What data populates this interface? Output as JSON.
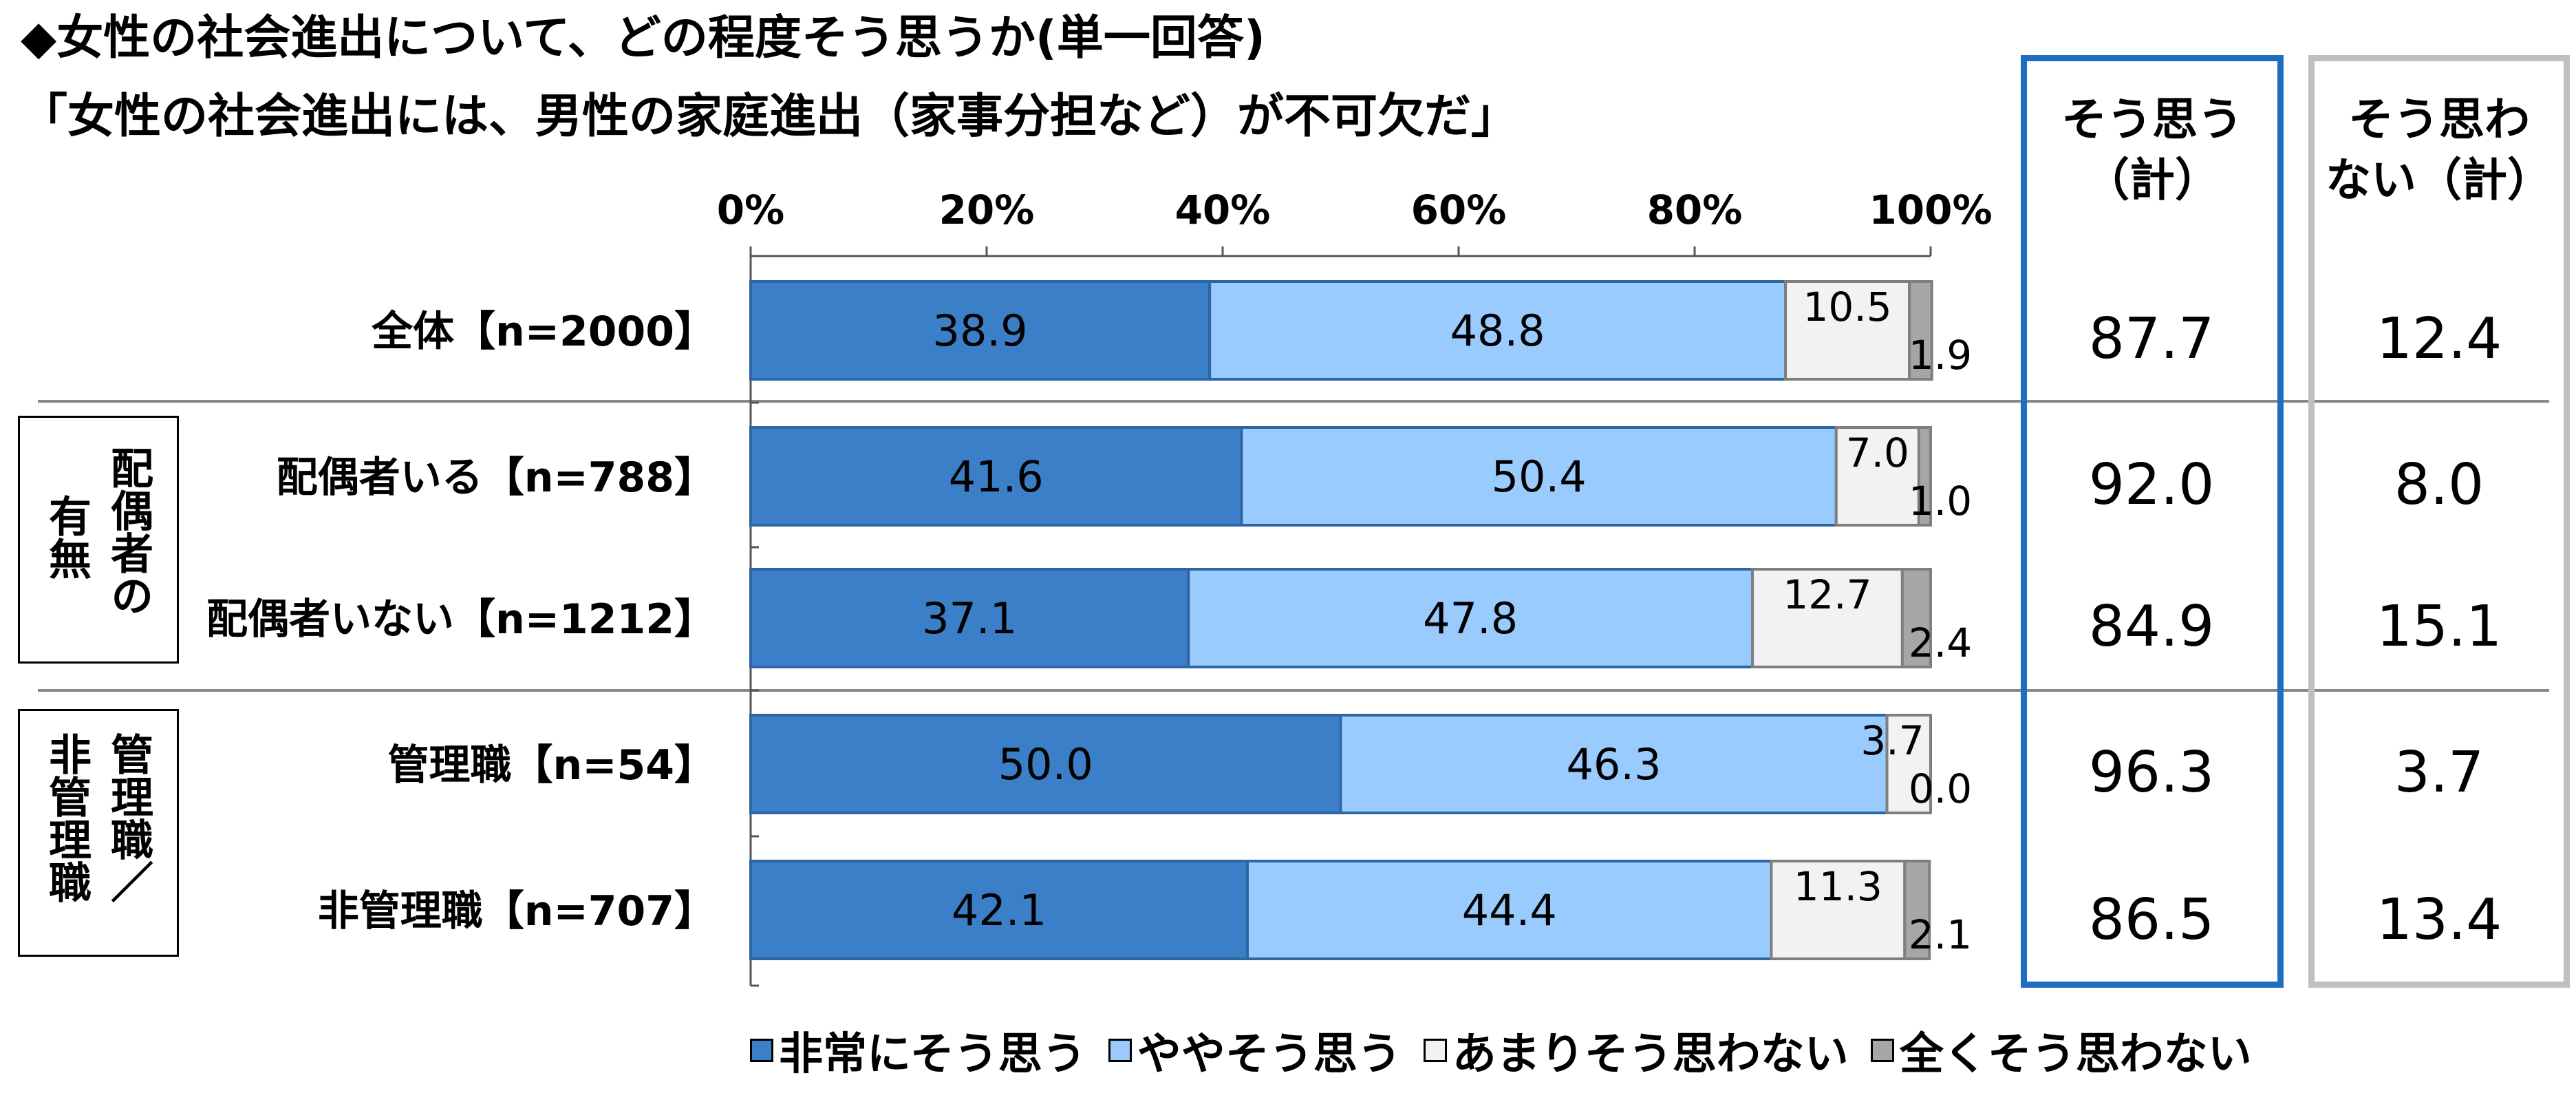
{
  "title_line1": "◆女性の社会進出について、どの程度そう思うか(単一回答)",
  "title_line2": "「女性の社会進出には、男性の家庭進出（家事分担など）が不可欠だ」",
  "summary_headers": {
    "yes": [
      "そう思う",
      "（計）"
    ],
    "no": [
      "そう思わ",
      "ない（計）"
    ]
  },
  "group_labels": {
    "spouse": [
      "有無",
      "配偶者の"
    ],
    "manager": [
      "非管理職",
      "管理職／"
    ]
  },
  "legend": [
    {
      "label": "非常にそう思う",
      "color": "#3a7fc8"
    },
    {
      "label": "ややそう思う",
      "color": "#99cbff"
    },
    {
      "label": "あまりそう思わない",
      "color": "#f2f2f2"
    },
    {
      "label": "全くそう思わない",
      "color": "#a6a6a6"
    }
  ],
  "chart_data": {
    "type": "bar",
    "orientation": "horizontal",
    "stacked": true,
    "x_tick_labels": [
      "0%",
      "20%",
      "40%",
      "60%",
      "80%",
      "100%"
    ],
    "xlim": [
      0,
      100
    ],
    "categories": [
      "全体【n=2000】",
      "配偶者いる【n=788】",
      "配偶者いない【n=1212】",
      "管理職【n=54】",
      "非管理職【n=707】"
    ],
    "series": [
      {
        "name": "非常にそう思う",
        "color": "#3a7fc8",
        "values": [
          38.9,
          41.6,
          37.1,
          50.0,
          42.1
        ]
      },
      {
        "name": "ややそう思う",
        "color": "#99cbff",
        "values": [
          48.8,
          50.4,
          47.8,
          46.3,
          44.4
        ]
      },
      {
        "name": "あまりそう思わない",
        "color": "#f2f2f2",
        "values": [
          10.5,
          7.0,
          12.7,
          3.7,
          11.3
        ]
      },
      {
        "name": "全くそう思わない",
        "color": "#a6a6a6",
        "values": [
          1.9,
          1.0,
          2.4,
          0.0,
          2.1
        ]
      }
    ],
    "label_text": [
      [
        "38.9",
        "48.8",
        "10.5",
        "1.9"
      ],
      [
        "41.6",
        "50.4",
        "7.0",
        "1.0"
      ],
      [
        "37.1",
        "47.8",
        "12.7",
        "2.4"
      ],
      [
        "50.0",
        "46.3",
        "3.7",
        "0.0"
      ],
      [
        "42.1",
        "44.4",
        "11.3",
        "2.1"
      ]
    ],
    "totals_yes": [
      "87.7",
      "92.0",
      "84.9",
      "96.3",
      "86.5"
    ],
    "totals_no": [
      "12.4",
      "8.0",
      "15.1",
      "3.7",
      "13.4"
    ],
    "legend_position": "bottom"
  }
}
